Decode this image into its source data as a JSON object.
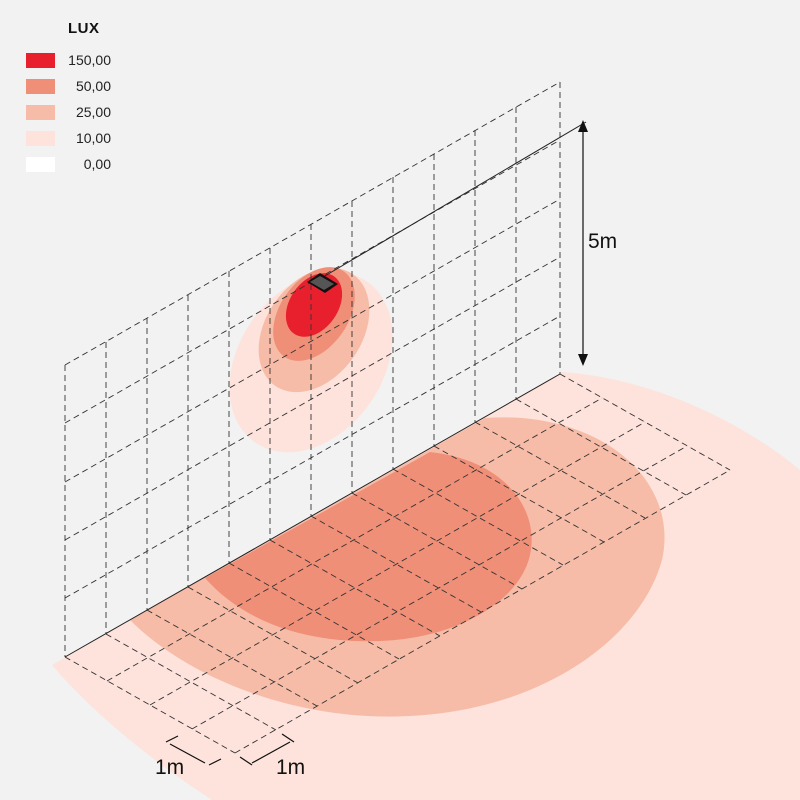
{
  "legend": {
    "title": "LUX",
    "items": [
      {
        "value": "150,00",
        "color": "#e8202d"
      },
      {
        "value": "50,00",
        "color": "#f08f78"
      },
      {
        "value": "25,00",
        "color": "#f7bca8"
      },
      {
        "value": "10,00",
        "color": "#fde3db"
      },
      {
        "value": "0,00",
        "color": "#ffffff"
      }
    ]
  },
  "dimensions": {
    "height": "5m",
    "floor_grid_a": "1m",
    "floor_grid_b": "1m"
  },
  "colors": {
    "background": "#f2f2f2",
    "grid_line": "#333333"
  }
}
